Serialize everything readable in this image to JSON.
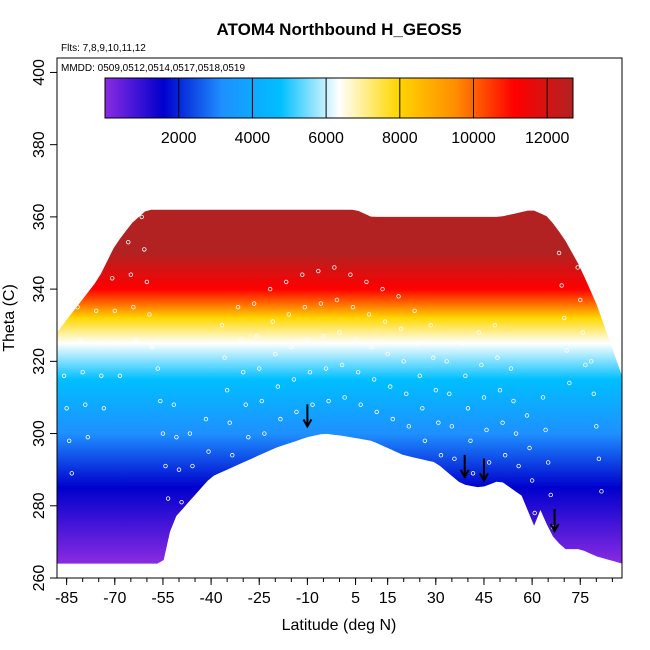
{
  "chart_data": {
    "type": "heatmap",
    "title": "ATOM4 Northbound H_GEOS5",
    "annotations": {
      "flights": "Flts: 7,8,9,10,11,12",
      "dates": "MMDD: 0509,0512,0514,0517,0518,0519"
    },
    "xlabel": "Latitude (deg N)",
    "ylabel": "Theta (C)",
    "xlim": [
      -88,
      88
    ],
    "ylim": [
      260,
      404
    ],
    "xticks": [
      -85,
      -70,
      -55,
      -40,
      -25,
      -10,
      5,
      15,
      30,
      45,
      60,
      75
    ],
    "xtick_labels": [
      "-85",
      "-70",
      "-55",
      "-40",
      "-25",
      "-10",
      "5",
      "15",
      "30",
      "45",
      "60",
      "75"
    ],
    "yticks": [
      260,
      280,
      300,
      320,
      340,
      360,
      380,
      400
    ],
    "ytick_labels": [
      "260",
      "280",
      "300",
      "320",
      "340",
      "360",
      "380",
      "400"
    ],
    "colorbar": {
      "range": [
        0,
        12700
      ],
      "ticks": [
        2000,
        4000,
        6000,
        8000,
        10000,
        12000
      ],
      "tick_labels": [
        "2000",
        "4000",
        "6000",
        "8000",
        "10000",
        "12000"
      ],
      "colors": [
        "#8a2be2",
        "#0000cd",
        "#1e90ff",
        "#00bfff",
        "#ffffff",
        "#ffd700",
        "#ff8c00",
        "#ff0000",
        "#b22222"
      ]
    },
    "surface_boundary": {
      "lat": [
        -88,
        -55,
        -52,
        -45,
        -40,
        -30,
        -20,
        -10,
        -5,
        0,
        10,
        15,
        20,
        30,
        38,
        44,
        50,
        58,
        60,
        62,
        66,
        70,
        75,
        80,
        88
      ],
      "theta": [
        264,
        264,
        276,
        283,
        288,
        292,
        296,
        299,
        300,
        299.5,
        298,
        296,
        294,
        292,
        286,
        285,
        287,
        282,
        272,
        280,
        272,
        268,
        268,
        266,
        264
      ]
    },
    "top_boundary": {
      "lat": [
        -88,
        -75,
        -70,
        -65,
        -60,
        -20,
        5,
        10,
        50,
        60,
        65,
        70,
        75,
        80,
        88
      ],
      "theta": [
        328,
        343,
        352,
        358,
        362,
        362,
        362,
        360,
        360,
        362,
        360,
        354,
        346,
        336,
        316
      ]
    },
    "background_field": {
      "description": "geopotential height by latitude and theta",
      "bands": [
        {
          "theta": 264,
          "value": 0
        },
        {
          "theta": 285,
          "value": 1000
        },
        {
          "theta": 300,
          "value": 2500
        },
        {
          "theta": 315,
          "value": 4500
        },
        {
          "theta": 325,
          "value": 6500
        },
        {
          "theta": 332,
          "value": 8500
        },
        {
          "theta": 340,
          "value": 10500
        },
        {
          "theta": 350,
          "value": 12000
        },
        {
          "theta": 362,
          "value": 12600
        }
      ]
    },
    "arrows": [
      {
        "lat": -10,
        "theta": 302
      },
      {
        "lat": 39,
        "theta": 288
      },
      {
        "lat": 45,
        "theta": 287
      },
      {
        "lat": 67,
        "theta": 273
      }
    ],
    "flight_track": {
      "lat": [
        -85,
        -80,
        -75,
        -70,
        -65,
        -60,
        -55,
        -50,
        -45,
        -40,
        -35,
        -30,
        -25,
        -20,
        -15,
        -10,
        -5,
        0,
        5,
        10,
        15,
        20,
        25,
        30,
        35,
        40,
        45,
        50,
        55,
        60,
        65,
        70,
        75,
        80
      ],
      "theta": [
        325,
        335,
        343,
        352,
        362,
        360,
        318,
        308,
        300,
        304,
        330,
        335,
        336,
        340,
        342,
        344,
        345,
        346,
        344,
        342,
        340,
        338,
        334,
        330,
        320,
        325,
        328,
        330,
        318,
        305,
        310,
        350,
        355,
        320
      ]
    }
  }
}
